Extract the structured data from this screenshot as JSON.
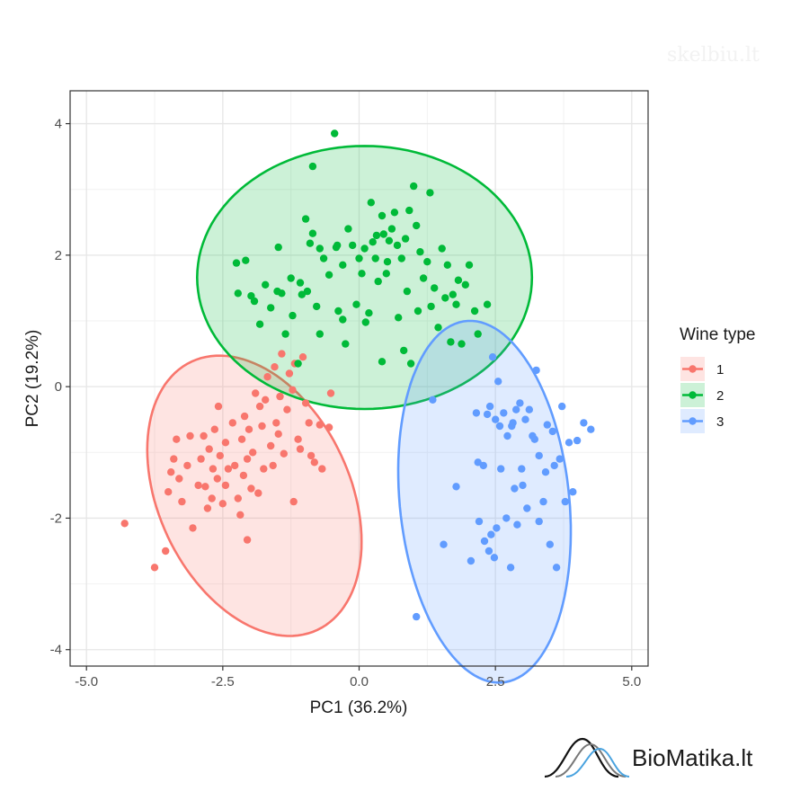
{
  "watermark": "skelbiu.lt",
  "brand": {
    "name": "BioMatika.lt"
  },
  "chart_data": {
    "type": "scatter",
    "xlabel": "PC1 (36.2%)",
    "ylabel": "PC2 (19.2%)",
    "xlim": [
      -5.3,
      5.3
    ],
    "ylim": [
      -4.25,
      4.5
    ],
    "xticks": [
      -5.0,
      -2.5,
      0.0,
      2.5,
      5.0
    ],
    "xtick_labels": [
      "-5.0",
      "-2.5",
      "0.0",
      "2.5",
      "5.0"
    ],
    "yticks": [
      -4,
      -2,
      0,
      2,
      4
    ],
    "ytick_labels": [
      "-4",
      "-2",
      "0",
      "2",
      "4"
    ],
    "grid": true,
    "legend": {
      "title": "Wine type",
      "position": "right"
    },
    "series": [
      {
        "name": "1",
        "color": "#F8766D",
        "ellipse": {
          "cx": -1.92,
          "cy": -1.66,
          "rx": 1.67,
          "ry": 2.37,
          "angle_deg": 38
        },
        "points": [
          [
            -4.3,
            -2.08
          ],
          [
            -3.75,
            -2.75
          ],
          [
            -3.55,
            -2.5
          ],
          [
            -3.5,
            -1.6
          ],
          [
            -3.45,
            -1.3
          ],
          [
            -3.4,
            -1.1
          ],
          [
            -3.35,
            -0.8
          ],
          [
            -3.3,
            -1.4
          ],
          [
            -3.25,
            -1.75
          ],
          [
            -3.15,
            -1.2
          ],
          [
            -3.1,
            -0.75
          ],
          [
            -3.05,
            -2.15
          ],
          [
            -2.95,
            -1.5
          ],
          [
            -2.9,
            -1.1
          ],
          [
            -2.85,
            -0.75
          ],
          [
            -2.82,
            -1.52
          ],
          [
            -2.78,
            -1.85
          ],
          [
            -2.75,
            -0.95
          ],
          [
            -2.7,
            -1.7
          ],
          [
            -2.68,
            -1.25
          ],
          [
            -2.65,
            -0.65
          ],
          [
            -2.6,
            -1.4
          ],
          [
            -2.58,
            -0.3
          ],
          [
            -2.55,
            -1.05
          ],
          [
            -2.5,
            -1.78
          ],
          [
            -2.45,
            -1.5
          ],
          [
            -2.45,
            -0.85
          ],
          [
            -2.4,
            -1.25
          ],
          [
            -2.32,
            -0.55
          ],
          [
            -2.28,
            -1.2
          ],
          [
            -2.22,
            -1.7
          ],
          [
            -2.18,
            -1.95
          ],
          [
            -2.15,
            -0.8
          ],
          [
            -2.12,
            -1.35
          ],
          [
            -2.1,
            -0.45
          ],
          [
            -2.05,
            -1.1
          ],
          [
            -2.05,
            -2.33
          ],
          [
            -2.02,
            -0.65
          ],
          [
            -1.98,
            -1.55
          ],
          [
            -1.95,
            -1.0
          ],
          [
            -1.9,
            -0.1
          ],
          [
            -1.85,
            -1.62
          ],
          [
            -1.82,
            -0.3
          ],
          [
            -1.78,
            -0.6
          ],
          [
            -1.75,
            -1.25
          ],
          [
            -1.72,
            -0.2
          ],
          [
            -1.68,
            0.15
          ],
          [
            -1.62,
            -0.9
          ],
          [
            -1.58,
            -1.2
          ],
          [
            -1.55,
            0.3
          ],
          [
            -1.52,
            -0.55
          ],
          [
            -1.48,
            -0.72
          ],
          [
            -1.45,
            -0.15
          ],
          [
            -1.42,
            0.5
          ],
          [
            -1.38,
            -1.02
          ],
          [
            -1.32,
            -0.35
          ],
          [
            -1.28,
            0.2
          ],
          [
            -1.22,
            -0.05
          ],
          [
            -1.18,
            0.35
          ],
          [
            -1.12,
            -0.8
          ],
          [
            -1.08,
            -0.95
          ],
          [
            -1.03,
            0.45
          ],
          [
            -0.98,
            -0.25
          ],
          [
            -0.92,
            -0.55
          ],
          [
            -0.88,
            -1.05
          ],
          [
            -0.82,
            -1.15
          ],
          [
            -0.72,
            -0.58
          ],
          [
            -0.68,
            -1.25
          ],
          [
            -0.55,
            -0.62
          ],
          [
            -0.52,
            -0.1
          ],
          [
            -1.2,
            -1.75
          ]
        ]
      },
      {
        "name": "2",
        "color": "#00BA38",
        "ellipse": {
          "cx": 0.1,
          "cy": 1.66,
          "rx": 3.07,
          "ry": 2.0,
          "angle_deg": 0
        },
        "points": [
          [
            -0.45,
            3.85
          ],
          [
            -0.4,
            2.15
          ],
          [
            -0.3,
            1.85
          ],
          [
            -0.85,
            3.35
          ],
          [
            -2.25,
            1.88
          ],
          [
            -2.22,
            1.42
          ],
          [
            -2.08,
            1.92
          ],
          [
            -1.98,
            1.38
          ],
          [
            -1.92,
            1.3
          ],
          [
            -1.82,
            0.95
          ],
          [
            -1.72,
            1.55
          ],
          [
            -1.62,
            1.2
          ],
          [
            -1.5,
            1.45
          ],
          [
            -1.48,
            2.12
          ],
          [
            -1.42,
            1.42
          ],
          [
            -1.35,
            0.8
          ],
          [
            -1.25,
            1.65
          ],
          [
            -1.22,
            1.08
          ],
          [
            -1.12,
            0.35
          ],
          [
            -1.08,
            1.58
          ],
          [
            -1.05,
            1.4
          ],
          [
            -0.98,
            2.55
          ],
          [
            -0.95,
            1.45
          ],
          [
            -0.9,
            2.18
          ],
          [
            -0.85,
            2.33
          ],
          [
            -0.78,
            1.22
          ],
          [
            -0.72,
            2.1
          ],
          [
            -0.65,
            1.95
          ],
          [
            -0.55,
            1.7
          ],
          [
            -0.42,
            2.12
          ],
          [
            -0.38,
            1.15
          ],
          [
            -0.3,
            1.02
          ],
          [
            -0.2,
            2.4
          ],
          [
            -0.12,
            2.15
          ],
          [
            -0.05,
            1.25
          ],
          [
            0.0,
            1.95
          ],
          [
            0.05,
            1.72
          ],
          [
            0.1,
            2.1
          ],
          [
            0.12,
            0.98
          ],
          [
            0.18,
            1.12
          ],
          [
            0.22,
            2.8
          ],
          [
            0.25,
            2.2
          ],
          [
            0.3,
            1.95
          ],
          [
            0.32,
            2.3
          ],
          [
            0.35,
            1.6
          ],
          [
            0.42,
            2.6
          ],
          [
            0.45,
            2.32
          ],
          [
            0.5,
            1.72
          ],
          [
            0.52,
            1.9
          ],
          [
            0.55,
            2.22
          ],
          [
            0.6,
            2.4
          ],
          [
            0.65,
            2.65
          ],
          [
            0.7,
            2.15
          ],
          [
            0.72,
            1.05
          ],
          [
            0.78,
            1.95
          ],
          [
            0.82,
            0.55
          ],
          [
            0.85,
            2.25
          ],
          [
            0.88,
            1.45
          ],
          [
            0.92,
            2.68
          ],
          [
            0.95,
            0.35
          ],
          [
            1.0,
            3.05
          ],
          [
            1.05,
            2.45
          ],
          [
            1.08,
            1.15
          ],
          [
            1.12,
            2.05
          ],
          [
            1.18,
            1.65
          ],
          [
            1.25,
            1.9
          ],
          [
            1.3,
            2.95
          ],
          [
            1.32,
            1.22
          ],
          [
            1.38,
            1.5
          ],
          [
            1.45,
            0.9
          ],
          [
            1.52,
            2.1
          ],
          [
            1.58,
            1.35
          ],
          [
            1.62,
            1.85
          ],
          [
            1.68,
            0.68
          ],
          [
            1.72,
            1.4
          ],
          [
            1.78,
            1.25
          ],
          [
            1.82,
            1.62
          ],
          [
            1.88,
            0.65
          ],
          [
            1.95,
            1.55
          ],
          [
            2.02,
            1.85
          ],
          [
            2.12,
            1.15
          ],
          [
            2.18,
            0.8
          ],
          [
            2.35,
            1.25
          ],
          [
            0.42,
            0.38
          ],
          [
            -0.25,
            0.65
          ],
          [
            -0.72,
            0.8
          ]
        ]
      },
      {
        "name": "3",
        "color": "#619CFF",
        "ellipse": {
          "cx": 2.3,
          "cy": -1.75,
          "rx": 2.77,
          "ry": 1.55,
          "angle_deg": -82
        },
        "points": [
          [
            1.05,
            -3.5
          ],
          [
            1.35,
            -0.2
          ],
          [
            1.55,
            -2.4
          ],
          [
            1.78,
            -1.52
          ],
          [
            2.05,
            -2.65
          ],
          [
            2.15,
            -0.4
          ],
          [
            2.18,
            -1.15
          ],
          [
            2.2,
            -2.05
          ],
          [
            2.28,
            -1.2
          ],
          [
            2.3,
            -2.35
          ],
          [
            2.35,
            -0.42
          ],
          [
            2.38,
            -2.5
          ],
          [
            2.4,
            -0.3
          ],
          [
            2.42,
            -2.25
          ],
          [
            2.45,
            0.45
          ],
          [
            2.48,
            -2.6
          ],
          [
            2.5,
            -0.5
          ],
          [
            2.52,
            -2.15
          ],
          [
            2.58,
            -0.6
          ],
          [
            2.6,
            -1.25
          ],
          [
            2.65,
            -0.4
          ],
          [
            2.7,
            -2.0
          ],
          [
            2.72,
            -0.75
          ],
          [
            2.78,
            -2.75
          ],
          [
            2.82,
            -0.55
          ],
          [
            2.85,
            -1.55
          ],
          [
            2.88,
            -0.35
          ],
          [
            2.9,
            -2.1
          ],
          [
            2.95,
            -0.25
          ],
          [
            2.98,
            -1.25
          ],
          [
            3.0,
            -1.5
          ],
          [
            3.05,
            -0.5
          ],
          [
            3.08,
            -1.85
          ],
          [
            3.12,
            -0.35
          ],
          [
            3.18,
            -0.75
          ],
          [
            3.22,
            -0.8
          ],
          [
            3.25,
            0.25
          ],
          [
            3.3,
            -2.05
          ],
          [
            3.38,
            -1.75
          ],
          [
            3.42,
            -1.3
          ],
          [
            3.45,
            -0.58
          ],
          [
            3.5,
            -2.4
          ],
          [
            3.55,
            -0.68
          ],
          [
            3.58,
            -1.2
          ],
          [
            3.62,
            -2.75
          ],
          [
            3.68,
            -1.1
          ],
          [
            3.72,
            -0.3
          ],
          [
            3.78,
            -1.75
          ],
          [
            3.85,
            -0.85
          ],
          [
            3.92,
            -1.6
          ],
          [
            4.0,
            -0.82
          ],
          [
            4.12,
            -0.55
          ],
          [
            4.25,
            -0.65
          ],
          [
            2.55,
            0.08
          ],
          [
            3.3,
            -1.05
          ],
          [
            2.8,
            -0.6
          ]
        ]
      }
    ]
  }
}
